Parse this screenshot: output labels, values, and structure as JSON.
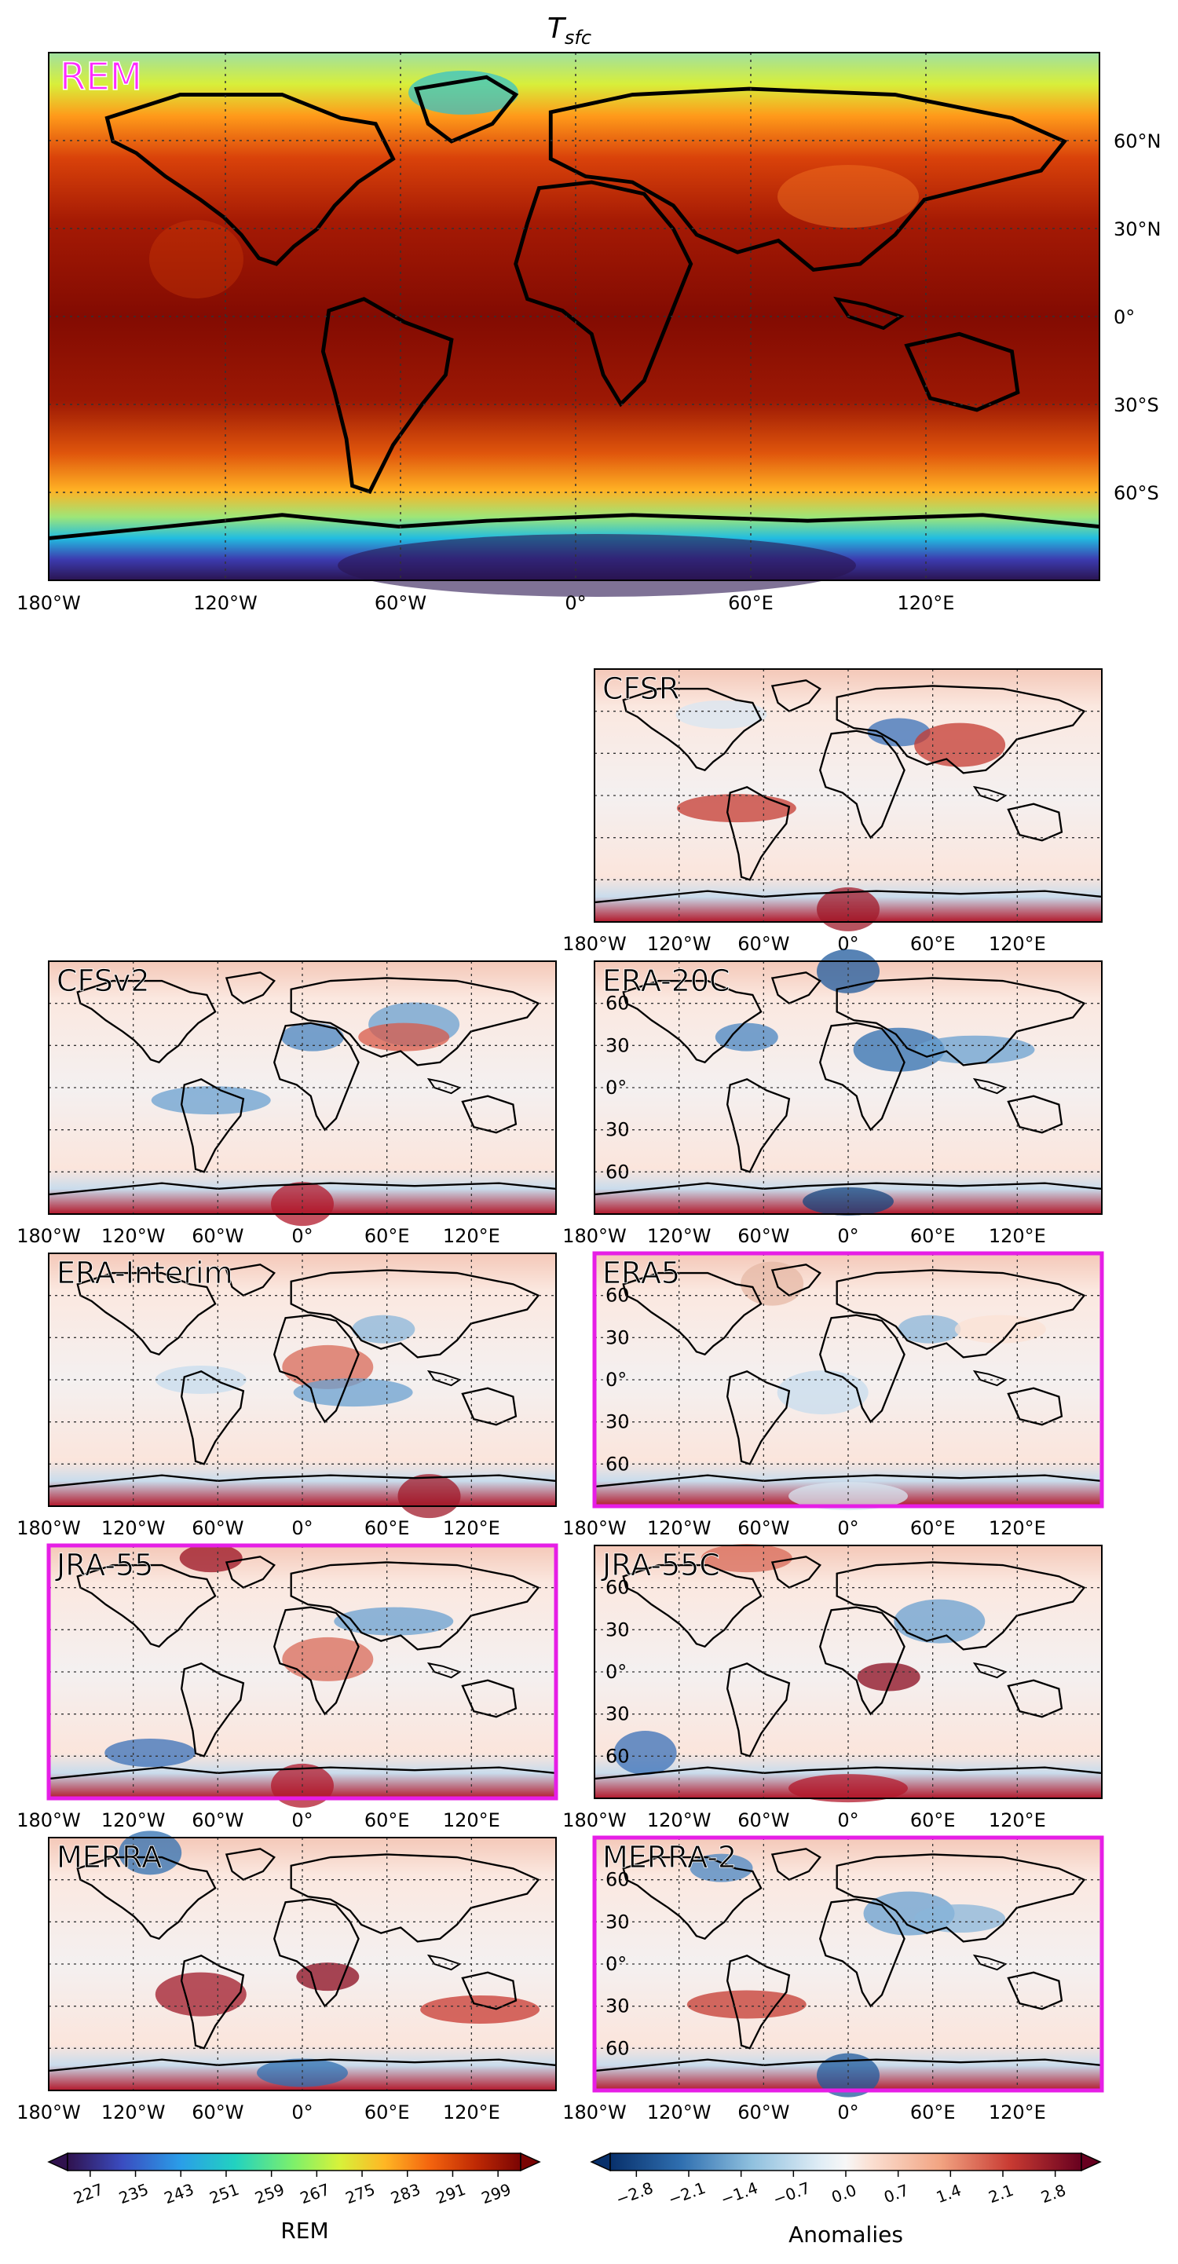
{
  "figure": {
    "title_main": "T",
    "title_sub": "sfc"
  },
  "colors": {
    "highlight": "#e61ee6",
    "coast": "#000000",
    "rem_label": "#ff2bff"
  },
  "main_map": {
    "label": "REM",
    "lat_ticks": [
      "60°N",
      "30°N",
      "0°",
      "30°S",
      "60°S"
    ],
    "lon_ticks": [
      "180°W",
      "120°W",
      "60°W",
      "0°",
      "60°E",
      "120°E"
    ]
  },
  "small_lon_ticks": [
    "180°W",
    "120°W",
    "60°W",
    "0°",
    "60°E",
    "120°E"
  ],
  "small_lat_ticks": [
    "60",
    "30",
    "0°",
    "30",
    "60"
  ],
  "panels": [
    {
      "label": "CFSR",
      "highlighted": false
    },
    {
      "label": "CFSv2",
      "highlighted": false
    },
    {
      "label": "ERA-20C",
      "highlighted": false
    },
    {
      "label": "ERA-Interim",
      "highlighted": false
    },
    {
      "label": "ERA5",
      "highlighted": true
    },
    {
      "label": "JRA-55",
      "highlighted": true
    },
    {
      "label": "JRA-55C",
      "highlighted": false
    },
    {
      "label": "MERRA",
      "highlighted": false
    },
    {
      "label": "MERRA-2",
      "highlighted": true
    }
  ],
  "colorbars": [
    {
      "name": "REM",
      "label": "REM",
      "ticks": [
        "227",
        "235",
        "243",
        "251",
        "259",
        "267",
        "275",
        "283",
        "291",
        "299"
      ],
      "colormap": "jet-like"
    },
    {
      "name": "anomalies",
      "label": "Anomalies",
      "ticks": [
        "−2.8",
        "−2.1",
        "−1.4",
        "−0.7",
        "0.0",
        "0.7",
        "1.4",
        "2.1",
        "2.8"
      ],
      "colormap": "RdBu_r"
    }
  ],
  "chart_data": {
    "type": "heatmap",
    "title": "Tsfc",
    "variable": "surface temperature",
    "main_panel": "REM",
    "main_colorbar_range": [
      227,
      299
    ],
    "anomaly_colorbar_range": [
      -2.8,
      2.8
    ],
    "anomaly_panels": [
      "CFSR",
      "CFSv2",
      "ERA-20C",
      "ERA-Interim",
      "ERA5",
      "JRA-55",
      "JRA-55C",
      "MERRA",
      "MERRA-2"
    ],
    "highlighted_panels": [
      "ERA5",
      "JRA-55",
      "MERRA-2"
    ],
    "lon_range": [
      -180,
      180
    ],
    "lat_ticks": [
      60,
      30,
      0,
      -30,
      -60
    ],
    "grid": true
  }
}
